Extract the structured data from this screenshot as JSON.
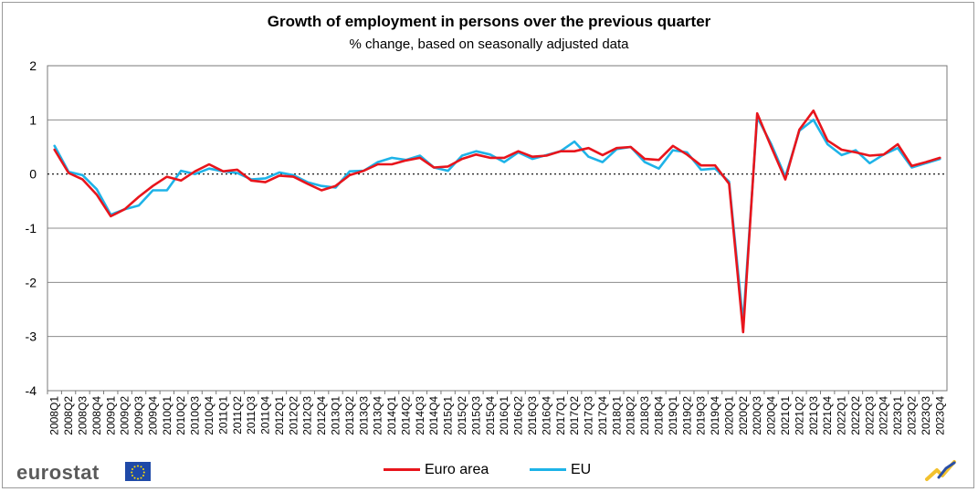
{
  "chart_data": {
    "type": "line",
    "title": "Growth of employment in persons over the previous quarter",
    "subtitle": "% change, based on seasonally adjusted data",
    "xlabel": "",
    "ylabel": "",
    "ylim": [
      -4,
      2
    ],
    "yticks": [
      2,
      1,
      0,
      -1,
      -2,
      -3,
      -4
    ],
    "grid": true,
    "legend_position": "bottom-center",
    "categories": [
      "2008Q1",
      "2008Q2",
      "2008Q3",
      "2008Q4",
      "2009Q1",
      "2009Q2",
      "2009Q3",
      "2009Q4",
      "2010Q1",
      "2010Q2",
      "2010Q3",
      "2010Q4",
      "2011Q1",
      "2011Q2",
      "2011Q3",
      "2011Q4",
      "2012Q1",
      "2012Q2",
      "2012Q3",
      "2012Q4",
      "2013Q1",
      "2013Q2",
      "2013Q3",
      "2013Q4",
      "2014Q1",
      "2014Q2",
      "2014Q3",
      "2014Q4",
      "2015Q1",
      "2015Q2",
      "2015Q3",
      "2015Q4",
      "2016Q1",
      "2016Q2",
      "2016Q3",
      "2016Q4",
      "2017Q1",
      "2017Q2",
      "2017Q3",
      "2017Q4",
      "2018Q1",
      "2018Q2",
      "2018Q3",
      "2018Q4",
      "2019Q1",
      "2019Q2",
      "2019Q3",
      "2019Q4",
      "2020Q1",
      "2020Q2",
      "2020Q3",
      "2020Q4",
      "2021Q1",
      "2021Q2",
      "2021Q3",
      "2021Q4",
      "2022Q1",
      "2022Q2",
      "2022Q3",
      "2022Q4",
      "2023Q1",
      "2023Q2",
      "2023Q3",
      "2023Q4"
    ],
    "series": [
      {
        "name": "Euro area",
        "color": "#e8151c",
        "values": [
          0.45,
          0.02,
          -0.1,
          -0.38,
          -0.78,
          -0.65,
          -0.42,
          -0.22,
          -0.05,
          -0.12,
          0.05,
          0.18,
          0.05,
          0.08,
          -0.12,
          -0.15,
          -0.03,
          -0.05,
          -0.18,
          -0.3,
          -0.22,
          -0.02,
          0.06,
          0.18,
          0.18,
          0.25,
          0.3,
          0.12,
          0.14,
          0.28,
          0.36,
          0.3,
          0.3,
          0.42,
          0.32,
          0.34,
          0.42,
          0.42,
          0.48,
          0.35,
          0.48,
          0.5,
          0.28,
          0.26,
          0.52,
          0.36,
          0.16,
          0.16,
          -0.18,
          -2.92,
          1.12,
          0.5,
          -0.1,
          0.82,
          1.17,
          0.62,
          0.45,
          0.4,
          0.34,
          0.36,
          0.55,
          0.15,
          0.22,
          0.3
        ]
      },
      {
        "name": "EU",
        "color": "#1eb3e8",
        "values": [
          0.52,
          0.04,
          -0.02,
          -0.28,
          -0.75,
          -0.65,
          -0.58,
          -0.3,
          -0.3,
          0.06,
          0.0,
          0.1,
          0.05,
          0.02,
          -0.1,
          -0.08,
          0.03,
          -0.02,
          -0.15,
          -0.22,
          -0.25,
          0.05,
          0.06,
          0.22,
          0.3,
          0.26,
          0.34,
          0.12,
          0.06,
          0.34,
          0.42,
          0.36,
          0.22,
          0.4,
          0.28,
          0.35,
          0.42,
          0.6,
          0.32,
          0.22,
          0.46,
          0.5,
          0.22,
          0.1,
          0.44,
          0.4,
          0.08,
          0.1,
          -0.14,
          -2.75,
          1.05,
          0.55,
          -0.05,
          0.8,
          1.0,
          0.55,
          0.35,
          0.44,
          0.2,
          0.36,
          0.48,
          0.12,
          0.2,
          0.28
        ]
      }
    ]
  },
  "branding": {
    "logo_text": "eurostat"
  }
}
